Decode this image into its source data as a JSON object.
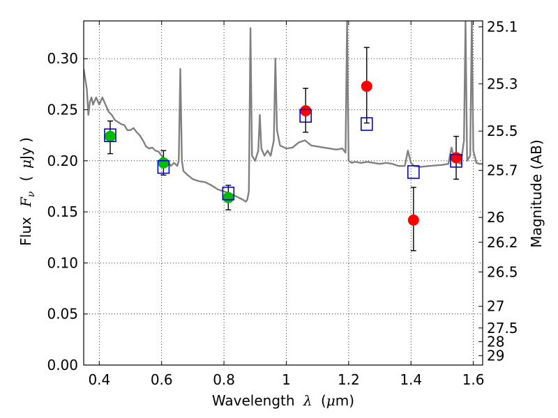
{
  "chart_data": {
    "type": "scatter",
    "xlabel": {
      "text": "Wavelength",
      "symbol": "λ",
      "unit_open": "(",
      "unit_mu": "μ",
      "unit_rest": "m)"
    },
    "ylabel": {
      "text": "Flux",
      "symbol": "F",
      "subscript": "ν",
      "unit_open": "(",
      "unit_mu": "μ",
      "unit_rest": "Jy )"
    },
    "y2label": "Magnitude (AB)",
    "xlim": [
      0.35,
      1.63
    ],
    "ylim": [
      0.0,
      0.337
    ],
    "xticks": [
      0.4,
      0.6,
      0.8,
      1.0,
      1.2,
      1.4,
      1.6
    ],
    "xtick_labels": [
      "0.4",
      "0.6",
      "0.8",
      "1",
      "1.2",
      "1.4",
      "1.6"
    ],
    "yticks": [
      0.0,
      0.05,
      0.1,
      0.15,
      0.2,
      0.25,
      0.3
    ],
    "ytick_labels": [
      "0.00",
      "0.05",
      "0.10",
      "0.15",
      "0.20",
      "0.25",
      "0.30"
    ],
    "y2ticks": [
      {
        "mag": 25.1,
        "label": "25.1"
      },
      {
        "mag": 25.3,
        "label": "25.3"
      },
      {
        "mag": 25.5,
        "label": "25.5"
      },
      {
        "mag": 25.7,
        "label": "25.7"
      },
      {
        "mag": 26.0,
        "label": "26"
      },
      {
        "mag": 26.2,
        "label": "26.2"
      },
      {
        "mag": 26.5,
        "label": "26.5"
      },
      {
        "mag": 27.0,
        "label": "27"
      },
      {
        "mag": 27.5,
        "label": "27.5"
      },
      {
        "mag": 28.0,
        "label": "28"
      },
      {
        "mag": 29.0,
        "label": "29"
      }
    ],
    "grid": true,
    "colors": {
      "green": "#00bb00",
      "red": "#ff0000",
      "blue": "#0000cc",
      "model": "#808080",
      "errorbar": "#000000"
    },
    "series": [
      {
        "marker": "circle",
        "color": "#00bb00",
        "points": [
          {
            "x": 0.435,
            "y": 0.224,
            "yerr": [
              0.017,
              0.015
            ]
          },
          {
            "x": 0.606,
            "y": 0.198,
            "yerr": [
              0.012,
              0.012
            ]
          },
          {
            "x": 0.814,
            "y": 0.164,
            "yerr": [
              0.012,
              0.012
            ]
          }
        ]
      },
      {
        "marker": "circle",
        "color": "#ff0000",
        "points": [
          {
            "x": 1.062,
            "y": 0.249,
            "yerr": [
              0.021,
              0.022
            ]
          },
          {
            "x": 1.258,
            "y": 0.273,
            "yerr": [
              0.036,
              0.038
            ]
          },
          {
            "x": 1.408,
            "y": 0.142,
            "yerr": [
              0.03,
              0.032
            ]
          },
          {
            "x": 1.545,
            "y": 0.203,
            "yerr": [
              0.021,
              0.021
            ]
          }
        ]
      },
      {
        "marker": "square-open",
        "color": "#0000cc",
        "points": [
          {
            "x": 0.435,
            "y": 0.225
          },
          {
            "x": 0.606,
            "y": 0.194
          },
          {
            "x": 0.814,
            "y": 0.168
          },
          {
            "x": 1.062,
            "y": 0.244
          },
          {
            "x": 1.258,
            "y": 0.236
          },
          {
            "x": 1.408,
            "y": 0.189
          },
          {
            "x": 1.545,
            "y": 0.2
          }
        ]
      }
    ],
    "model_spectrum": {
      "color": "#808080",
      "x": [
        0.35,
        0.36,
        0.365,
        0.37,
        0.375,
        0.38,
        0.39,
        0.4,
        0.41,
        0.42,
        0.43,
        0.44,
        0.45,
        0.46,
        0.47,
        0.48,
        0.49,
        0.5,
        0.51,
        0.52,
        0.53,
        0.54,
        0.55,
        0.56,
        0.57,
        0.58,
        0.59,
        0.6,
        0.61,
        0.62,
        0.63,
        0.64,
        0.65,
        0.655,
        0.66,
        0.665,
        0.67,
        0.68,
        0.7,
        0.72,
        0.74,
        0.76,
        0.78,
        0.8,
        0.82,
        0.84,
        0.86,
        0.87,
        0.875,
        0.88,
        0.885,
        0.89,
        0.9,
        0.91,
        0.915,
        0.92,
        0.93,
        0.94,
        0.95,
        0.96,
        0.965,
        0.97,
        0.98,
        1.0,
        1.02,
        1.04,
        1.06,
        1.08,
        1.1,
        1.12,
        1.14,
        1.16,
        1.18,
        1.19,
        1.195,
        1.2,
        1.21,
        1.22,
        1.24,
        1.26,
        1.28,
        1.3,
        1.32,
        1.34,
        1.36,
        1.38,
        1.39,
        1.4,
        1.41,
        1.43,
        1.46,
        1.5,
        1.52,
        1.53,
        1.54,
        1.56,
        1.57,
        1.575,
        1.58,
        1.59,
        1.595,
        1.6,
        1.61,
        1.62,
        1.63
      ],
      "y": [
        0.29,
        0.27,
        0.245,
        0.258,
        0.262,
        0.255,
        0.262,
        0.255,
        0.262,
        0.255,
        0.248,
        0.245,
        0.24,
        0.238,
        0.236,
        0.235,
        0.23,
        0.23,
        0.232,
        0.228,
        0.225,
        0.22,
        0.214,
        0.212,
        0.213,
        0.21,
        0.209,
        0.205,
        0.201,
        0.199,
        0.195,
        0.198,
        0.195,
        0.2,
        0.29,
        0.2,
        0.19,
        0.187,
        0.182,
        0.18,
        0.179,
        0.176,
        0.172,
        0.17,
        0.168,
        0.165,
        0.162,
        0.16,
        0.162,
        0.17,
        0.33,
        0.205,
        0.2,
        0.21,
        0.245,
        0.212,
        0.205,
        0.21,
        0.205,
        0.22,
        0.3,
        0.23,
        0.215,
        0.212,
        0.213,
        0.218,
        0.22,
        0.215,
        0.214,
        0.213,
        0.212,
        0.211,
        0.212,
        0.208,
        0.337,
        0.2,
        0.198,
        0.199,
        0.198,
        0.199,
        0.198,
        0.197,
        0.198,
        0.197,
        0.195,
        0.195,
        0.21,
        0.198,
        0.195,
        0.194,
        0.195,
        0.196,
        0.197,
        0.213,
        0.2,
        0.197,
        0.22,
        0.337,
        0.2,
        0.205,
        0.337,
        0.21,
        0.198,
        0.197,
        0.197
      ]
    }
  }
}
